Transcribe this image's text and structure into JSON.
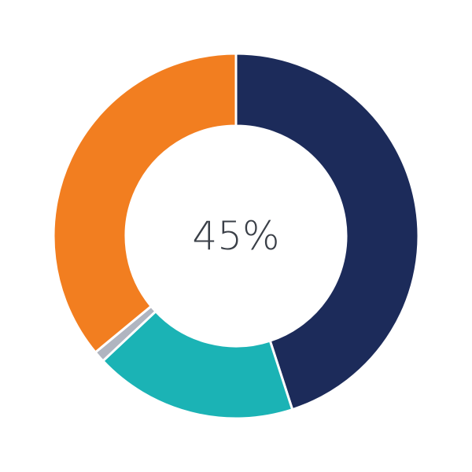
{
  "chart_data": {
    "type": "pie",
    "donut": true,
    "center_label": "45%",
    "slices": [
      {
        "value": 45,
        "color": "#1c2b5a"
      },
      {
        "value": 18,
        "color": "#1bb3b5"
      },
      {
        "value": 1,
        "color": "#b0b5c0"
      },
      {
        "value": 36,
        "color": "#f27e20"
      }
    ],
    "start": "top",
    "direction": "clockwise"
  }
}
